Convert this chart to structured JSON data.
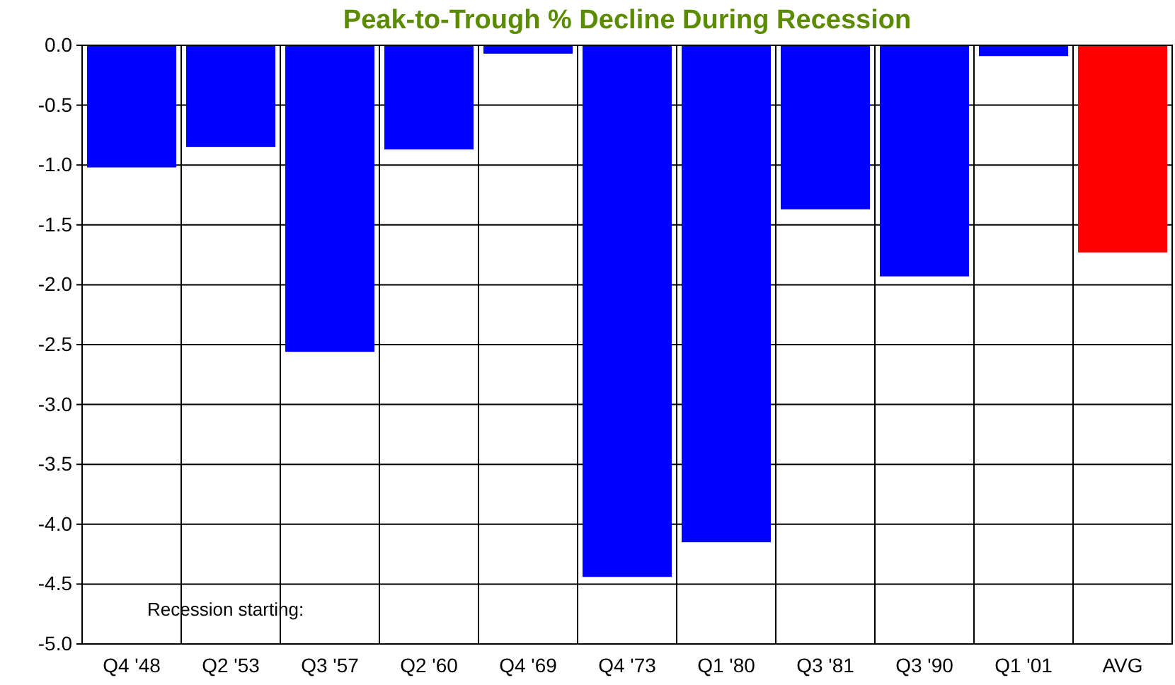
{
  "chart_data": {
    "type": "bar",
    "title": "Peak-to-Trough % Decline During Recession",
    "categories": [
      "Q4 '48",
      "Q2 '53",
      "Q3 '57",
      "Q2 '60",
      "Q4 '69",
      "Q4 '73",
      "Q1 '80",
      "Q3 '81",
      "Q3 '90",
      "Q1 '01",
      "AVG"
    ],
    "values": [
      -1.02,
      -0.85,
      -2.56,
      -0.87,
      -0.07,
      -4.44,
      -4.15,
      -1.37,
      -1.93,
      -0.09,
      -1.73
    ],
    "colors": [
      "#0000ff",
      "#0000ff",
      "#0000ff",
      "#0000ff",
      "#0000ff",
      "#0000ff",
      "#0000ff",
      "#0000ff",
      "#0000ff",
      "#0000ff",
      "#ff0000"
    ],
    "ylim": [
      -5,
      0
    ],
    "yticks": [
      {
        "value": -5,
        "label": "-5.0"
      },
      {
        "value": -4.5,
        "label": "-4.5"
      },
      {
        "value": -4,
        "label": "-4.0"
      },
      {
        "value": -3.5,
        "label": "-3.5"
      },
      {
        "value": -3,
        "label": "-3.0"
      },
      {
        "value": -2.5,
        "label": "-2.5"
      },
      {
        "value": -2,
        "label": "-2.0"
      },
      {
        "value": -1.5,
        "label": "-1.5"
      },
      {
        "value": -1,
        "label": "-1.0"
      },
      {
        "value": -0.5,
        "label": "-0.5"
      },
      {
        "value": 0,
        "label": "0.0"
      }
    ],
    "grid": true,
    "annotations": [
      "Recession starting:"
    ]
  }
}
